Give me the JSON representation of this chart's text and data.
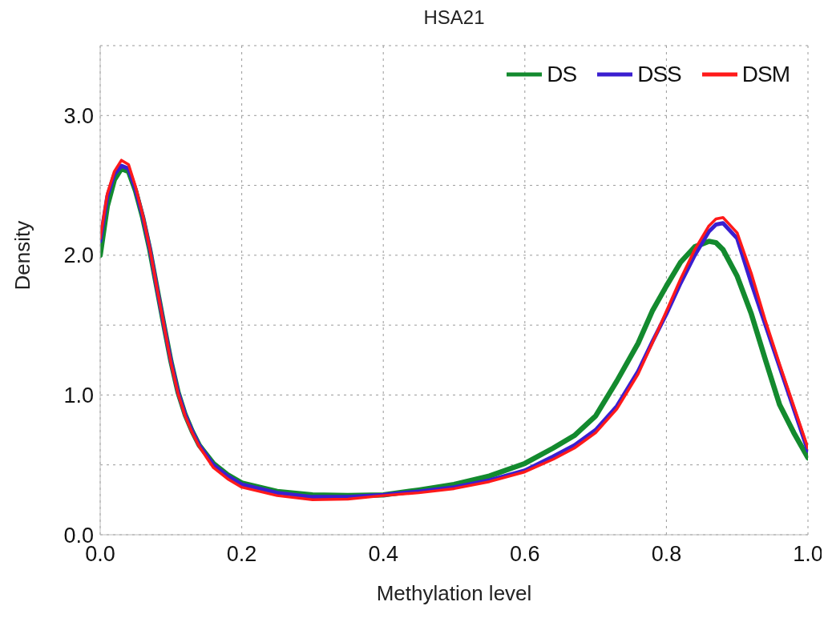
{
  "chart_data": {
    "type": "line",
    "title": "HSA21",
    "xlabel": "Methylation level",
    "ylabel": "Density",
    "x": [
      0,
      0.01,
      0.02,
      0.03,
      0.04,
      0.05,
      0.06,
      0.07,
      0.08,
      0.09,
      0.1,
      0.11,
      0.12,
      0.13,
      0.14,
      0.16,
      0.18,
      0.2,
      0.25,
      0.3,
      0.35,
      0.4,
      0.45,
      0.5,
      0.55,
      0.6,
      0.64,
      0.67,
      0.7,
      0.73,
      0.76,
      0.78,
      0.8,
      0.82,
      0.84,
      0.86,
      0.87,
      0.88,
      0.9,
      0.92,
      0.94,
      0.96,
      0.98,
      1.0
    ],
    "series": [
      {
        "name": "DS",
        "color": "#138a2e",
        "values": [
          2.0,
          2.35,
          2.54,
          2.62,
          2.6,
          2.46,
          2.27,
          2.04,
          1.77,
          1.5,
          1.24,
          1.02,
          0.86,
          0.74,
          0.64,
          0.51,
          0.43,
          0.37,
          0.31,
          0.285,
          0.28,
          0.285,
          0.32,
          0.36,
          0.42,
          0.51,
          0.62,
          0.71,
          0.85,
          1.1,
          1.37,
          1.6,
          1.78,
          1.95,
          2.06,
          2.1,
          2.09,
          2.04,
          1.85,
          1.58,
          1.25,
          0.93,
          0.73,
          0.55
        ]
      },
      {
        "name": "DSS",
        "color": "#3a1fd0",
        "values": [
          2.1,
          2.42,
          2.58,
          2.64,
          2.62,
          2.47,
          2.28,
          2.05,
          1.77,
          1.5,
          1.24,
          1.02,
          0.86,
          0.74,
          0.64,
          0.5,
          0.42,
          0.36,
          0.3,
          0.27,
          0.27,
          0.285,
          0.31,
          0.34,
          0.39,
          0.46,
          0.56,
          0.64,
          0.75,
          0.92,
          1.17,
          1.38,
          1.58,
          1.8,
          2.0,
          2.17,
          2.22,
          2.23,
          2.12,
          1.8,
          1.5,
          1.2,
          0.9,
          0.6
        ]
      },
      {
        "name": "DSM",
        "color": "#ff1a1a",
        "values": [
          2.12,
          2.44,
          2.6,
          2.68,
          2.65,
          2.49,
          2.29,
          2.05,
          1.77,
          1.5,
          1.23,
          1.01,
          0.85,
          0.73,
          0.63,
          0.48,
          0.4,
          0.34,
          0.28,
          0.25,
          0.255,
          0.28,
          0.3,
          0.33,
          0.38,
          0.45,
          0.54,
          0.62,
          0.73,
          0.9,
          1.15,
          1.37,
          1.6,
          1.83,
          2.04,
          2.21,
          2.26,
          2.27,
          2.16,
          1.87,
          1.53,
          1.22,
          0.92,
          0.62
        ]
      }
    ],
    "xlim": [
      0,
      1
    ],
    "xticks": [
      {
        "value": 0,
        "label": "0.0"
      },
      0.2,
      0.4,
      0.6,
      0.8,
      {
        "value": 1,
        "label": "1.0"
      }
    ],
    "ylim": [
      0,
      3.5
    ],
    "yticks": [
      {
        "value": 0,
        "label": "0.0"
      },
      {
        "value": 0.5,
        "label": null
      },
      {
        "value": 1,
        "label": "1.0"
      },
      {
        "value": 1.5,
        "label": null
      },
      {
        "value": 2,
        "label": "2.0"
      },
      {
        "value": 2.5,
        "label": null
      },
      {
        "value": 3,
        "label": "3.0"
      }
    ],
    "grid": true,
    "legend": "top right",
    "marker": "none",
    "line_style": "solid"
  }
}
